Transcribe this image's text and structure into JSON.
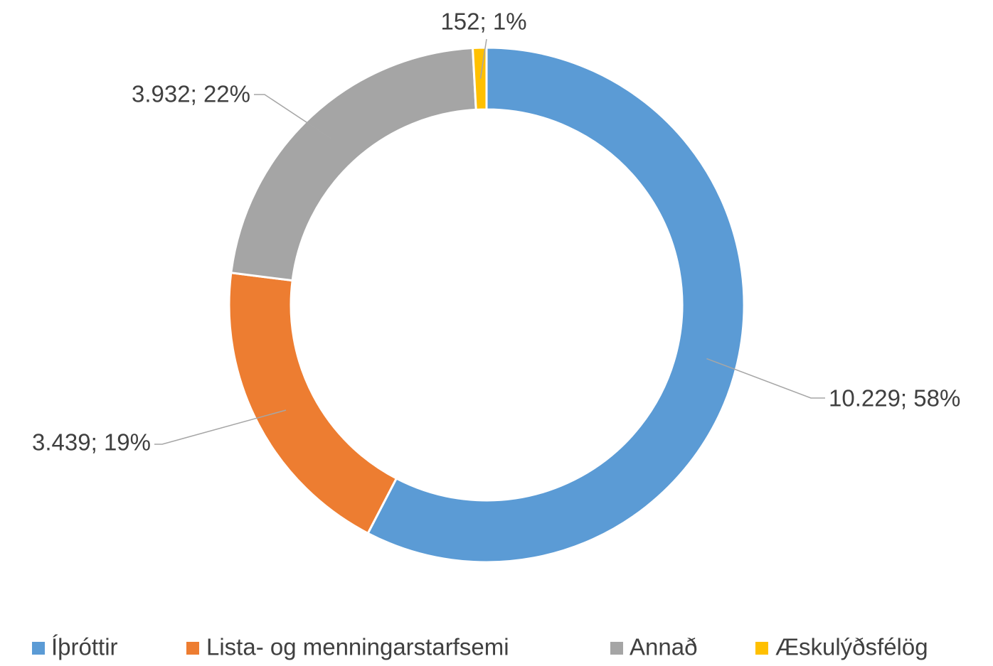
{
  "chart_data": {
    "type": "donut",
    "categories": [
      "Íþróttir",
      "Lista- og menningarstarfsemi",
      "Annað",
      "Æskulýðsfélög"
    ],
    "values": [
      10229,
      3439,
      3932,
      152
    ],
    "value_labels": [
      "10.229; 58%",
      "3.439; 19%",
      "3.932; 22%",
      "152; 1%"
    ],
    "colors": [
      "#5b9bd5",
      "#ed7d31",
      "#a5a5a5",
      "#ffc000"
    ],
    "legend": "bottom"
  }
}
